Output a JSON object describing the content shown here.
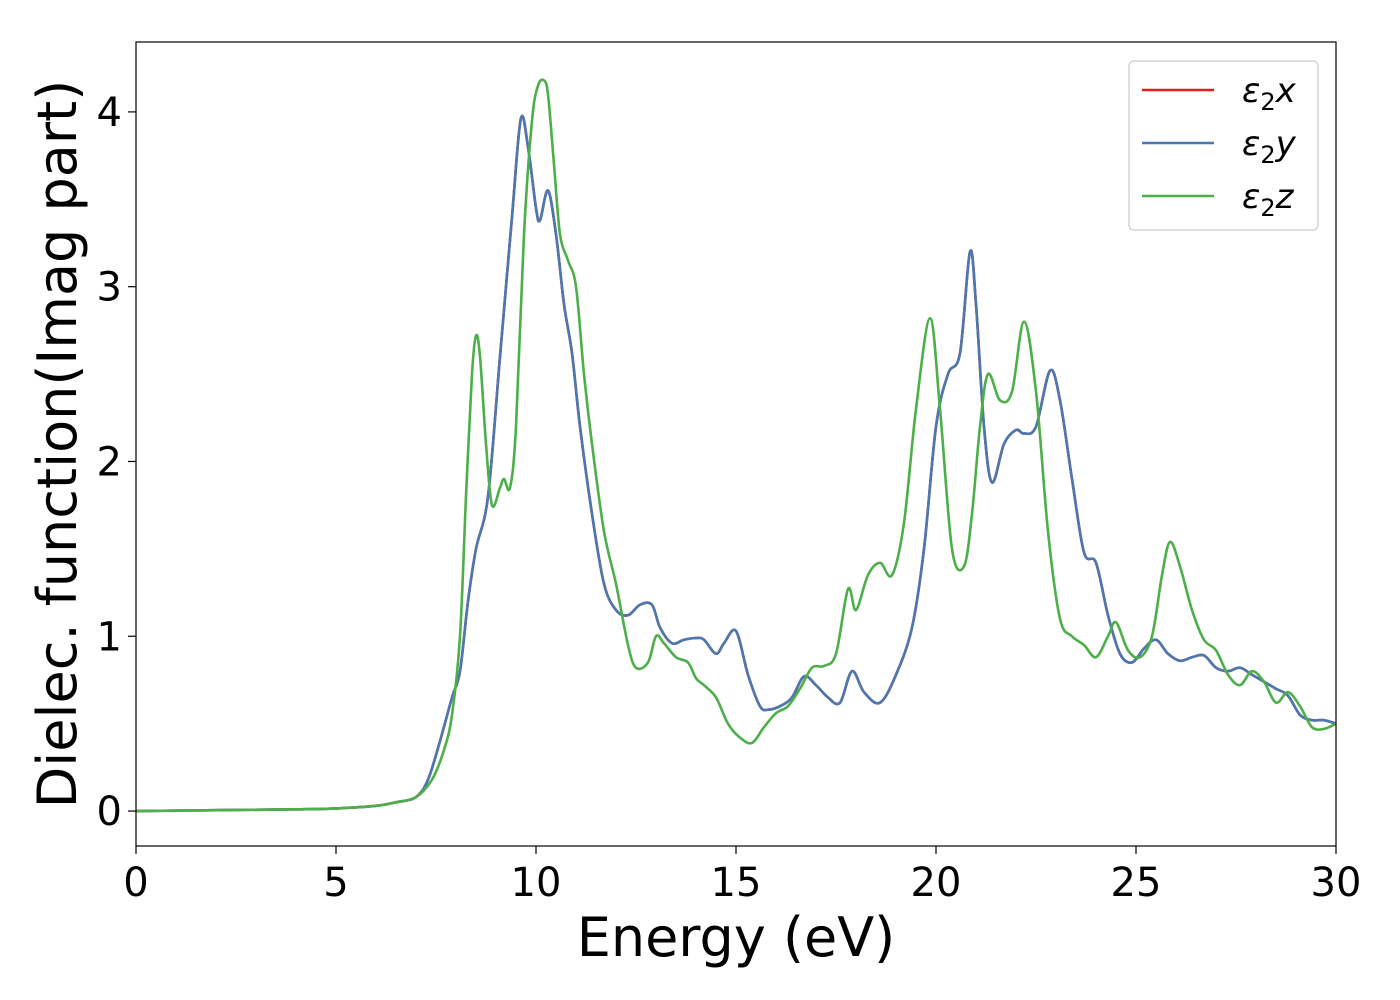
{
  "chart_data": {
    "type": "line",
    "xlabel": "Energy (eV)",
    "ylabel": "Dielec. function(Imag part)",
    "xlim": [
      0,
      30
    ],
    "ylim": [
      -0.2,
      4.4
    ],
    "xticks": [
      0,
      5,
      10,
      15,
      20,
      25,
      30
    ],
    "yticks": [
      0,
      1,
      2,
      3,
      4
    ],
    "grid": false,
    "legend_position": "top-right",
    "series": [
      {
        "name": "ε2x",
        "legend": {
          "base": "ε",
          "sub": "2",
          "axis": "x"
        },
        "color": "#e41a1c",
        "x": [
          0,
          2,
          4,
          5,
          6,
          6.5,
          7,
          7.3,
          7.6,
          7.9,
          8.1,
          8.3,
          8.5,
          8.8,
          9.1,
          9.4,
          9.62,
          9.8,
          10.0,
          10.1,
          10.3,
          10.5,
          10.7,
          10.9,
          11.1,
          11.4,
          11.7,
          12.0,
          12.3,
          12.6,
          12.9,
          13.1,
          13.4,
          13.7,
          14.0,
          14.2,
          14.5,
          14.7,
          15.0,
          15.3,
          15.6,
          15.8,
          16.1,
          16.4,
          16.7,
          17.0,
          17.3,
          17.6,
          17.9,
          18.2,
          18.6,
          19.0,
          19.4,
          19.7,
          20.0,
          20.3,
          20.6,
          20.85,
          21.0,
          21.2,
          21.4,
          21.7,
          22.0,
          22.2,
          22.5,
          22.85,
          23.1,
          23.4,
          23.7,
          24.0,
          24.3,
          24.6,
          24.9,
          25.2,
          25.5,
          25.8,
          26.1,
          26.4,
          26.7,
          27.0,
          27.3,
          27.6,
          27.9,
          28.2,
          28.5,
          28.8,
          29.1,
          29.4,
          29.7,
          30.0
        ],
        "values": [
          0.0,
          0.005,
          0.01,
          0.015,
          0.03,
          0.05,
          0.08,
          0.18,
          0.4,
          0.65,
          0.8,
          1.2,
          1.5,
          1.8,
          2.6,
          3.4,
          3.96,
          3.8,
          3.45,
          3.38,
          3.55,
          3.3,
          2.9,
          2.62,
          2.2,
          1.7,
          1.3,
          1.15,
          1.12,
          1.18,
          1.18,
          1.05,
          0.96,
          0.98,
          0.99,
          0.98,
          0.9,
          0.96,
          1.03,
          0.78,
          0.6,
          0.58,
          0.6,
          0.65,
          0.77,
          0.72,
          0.65,
          0.62,
          0.8,
          0.68,
          0.62,
          0.78,
          1.05,
          1.5,
          2.2,
          2.5,
          2.62,
          3.2,
          2.9,
          2.2,
          1.88,
          2.1,
          2.18,
          2.16,
          2.2,
          2.52,
          2.35,
          1.9,
          1.48,
          1.42,
          1.12,
          0.9,
          0.85,
          0.93,
          0.98,
          0.9,
          0.86,
          0.88,
          0.89,
          0.82,
          0.8,
          0.82,
          0.78,
          0.74,
          0.7,
          0.66,
          0.55,
          0.52,
          0.52,
          0.5
        ]
      },
      {
        "name": "ε2y",
        "legend": {
          "base": "ε",
          "sub": "2",
          "axis": "y"
        },
        "color": "#4a78b0",
        "x": [
          0,
          2,
          4,
          5,
          6,
          6.5,
          7,
          7.3,
          7.6,
          7.9,
          8.1,
          8.3,
          8.5,
          8.8,
          9.1,
          9.4,
          9.62,
          9.8,
          10.0,
          10.1,
          10.3,
          10.5,
          10.7,
          10.9,
          11.1,
          11.4,
          11.7,
          12.0,
          12.3,
          12.6,
          12.9,
          13.1,
          13.4,
          13.7,
          14.0,
          14.2,
          14.5,
          14.7,
          15.0,
          15.3,
          15.6,
          15.8,
          16.1,
          16.4,
          16.7,
          17.0,
          17.3,
          17.6,
          17.9,
          18.2,
          18.6,
          19.0,
          19.4,
          19.7,
          20.0,
          20.3,
          20.6,
          20.85,
          21.0,
          21.2,
          21.4,
          21.7,
          22.0,
          22.2,
          22.5,
          22.85,
          23.1,
          23.4,
          23.7,
          24.0,
          24.3,
          24.6,
          24.9,
          25.2,
          25.5,
          25.8,
          26.1,
          26.4,
          26.7,
          27.0,
          27.3,
          27.6,
          27.9,
          28.2,
          28.5,
          28.8,
          29.1,
          29.4,
          29.7,
          30.0
        ],
        "values": [
          0.0,
          0.005,
          0.01,
          0.015,
          0.03,
          0.05,
          0.08,
          0.18,
          0.4,
          0.65,
          0.8,
          1.2,
          1.5,
          1.8,
          2.6,
          3.4,
          3.96,
          3.8,
          3.45,
          3.38,
          3.55,
          3.3,
          2.9,
          2.62,
          2.2,
          1.7,
          1.3,
          1.15,
          1.12,
          1.18,
          1.18,
          1.05,
          0.96,
          0.98,
          0.99,
          0.98,
          0.9,
          0.96,
          1.03,
          0.78,
          0.6,
          0.58,
          0.6,
          0.65,
          0.77,
          0.72,
          0.65,
          0.62,
          0.8,
          0.68,
          0.62,
          0.78,
          1.05,
          1.5,
          2.2,
          2.5,
          2.62,
          3.2,
          2.9,
          2.2,
          1.88,
          2.1,
          2.18,
          2.16,
          2.2,
          2.52,
          2.35,
          1.9,
          1.48,
          1.42,
          1.12,
          0.9,
          0.85,
          0.93,
          0.98,
          0.9,
          0.86,
          0.88,
          0.89,
          0.82,
          0.8,
          0.82,
          0.78,
          0.74,
          0.7,
          0.66,
          0.55,
          0.52,
          0.52,
          0.5
        ]
      },
      {
        "name": "ε2z",
        "legend": {
          "base": "ε",
          "sub": "2",
          "axis": "z"
        },
        "color": "#4daf4a",
        "x": [
          0,
          2,
          4,
          5,
          6,
          6.5,
          7,
          7.4,
          7.7,
          7.9,
          8.1,
          8.25,
          8.4,
          8.5,
          8.6,
          8.75,
          8.9,
          9.1,
          9.2,
          9.35,
          9.5,
          9.7,
          9.9,
          10.05,
          10.2,
          10.3,
          10.45,
          10.6,
          10.8,
          11.0,
          11.2,
          11.4,
          11.7,
          12.0,
          12.3,
          12.5,
          12.8,
          13.0,
          13.2,
          13.5,
          13.8,
          14.0,
          14.2,
          14.5,
          14.8,
          15.1,
          15.4,
          15.7,
          16.0,
          16.3,
          16.6,
          16.9,
          17.2,
          17.5,
          17.8,
          18.0,
          18.3,
          18.6,
          18.9,
          19.2,
          19.5,
          19.85,
          20.1,
          20.4,
          20.7,
          20.9,
          21.1,
          21.3,
          21.6,
          21.9,
          22.2,
          22.5,
          22.8,
          23.1,
          23.4,
          23.7,
          24.0,
          24.3,
          24.5,
          24.8,
          25.1,
          25.4,
          25.65,
          25.85,
          26.1,
          26.4,
          26.7,
          27.0,
          27.3,
          27.6,
          27.9,
          28.2,
          28.5,
          28.8,
          29.1,
          29.4,
          29.7,
          30.0
        ],
        "values": [
          0.0,
          0.005,
          0.01,
          0.015,
          0.03,
          0.05,
          0.08,
          0.18,
          0.35,
          0.55,
          1.0,
          1.8,
          2.5,
          2.72,
          2.6,
          2.1,
          1.75,
          1.85,
          1.9,
          1.85,
          2.2,
          3.3,
          3.95,
          4.15,
          4.18,
          4.1,
          3.7,
          3.3,
          3.15,
          3.0,
          2.5,
          2.1,
          1.6,
          1.3,
          0.95,
          0.82,
          0.85,
          1.0,
          0.96,
          0.88,
          0.85,
          0.76,
          0.72,
          0.65,
          0.5,
          0.42,
          0.39,
          0.48,
          0.56,
          0.6,
          0.7,
          0.82,
          0.83,
          0.9,
          1.27,
          1.15,
          1.35,
          1.42,
          1.35,
          1.65,
          2.3,
          2.82,
          2.3,
          1.5,
          1.4,
          1.7,
          2.2,
          2.5,
          2.35,
          2.4,
          2.8,
          2.4,
          1.6,
          1.1,
          1.0,
          0.95,
          0.88,
          1.0,
          1.08,
          0.92,
          0.88,
          1.0,
          1.35,
          1.54,
          1.4,
          1.15,
          0.98,
          0.92,
          0.78,
          0.72,
          0.8,
          0.74,
          0.62,
          0.68,
          0.6,
          0.48,
          0.47,
          0.5
        ]
      }
    ]
  }
}
